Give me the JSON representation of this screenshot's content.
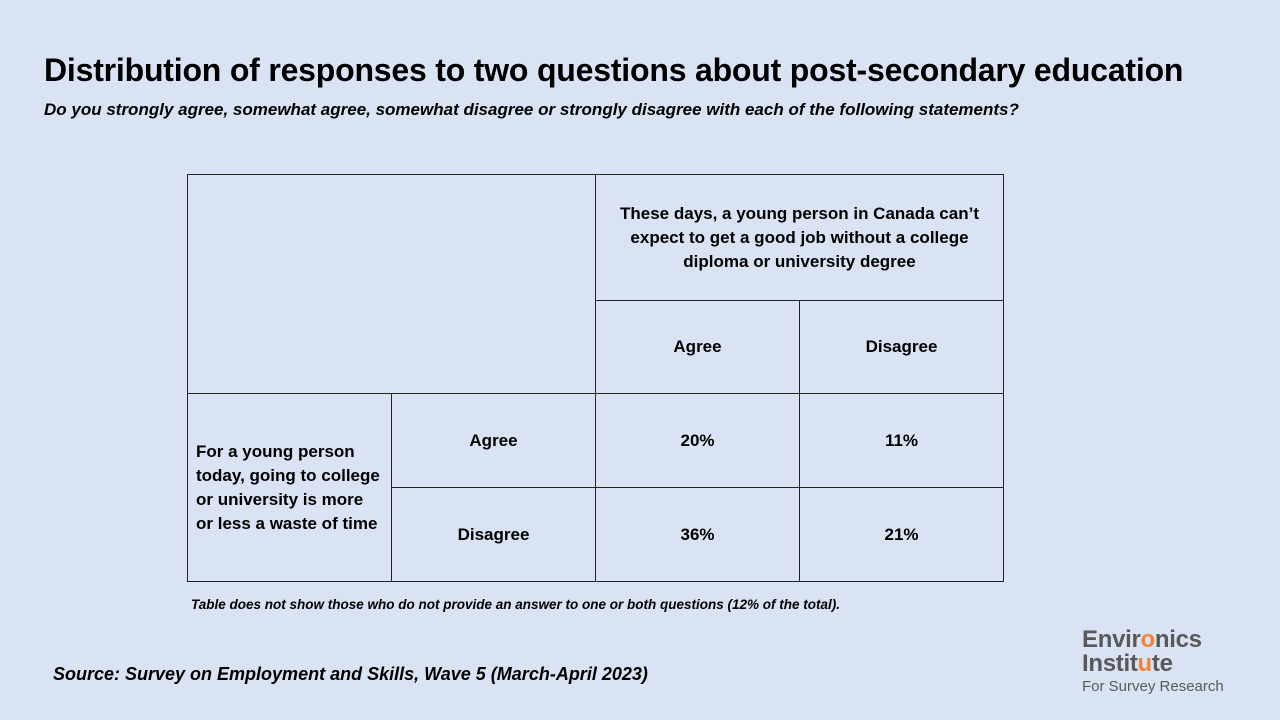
{
  "title": "Distribution of responses to two questions about post-secondary education",
  "subtitle": "Do you strongly agree, somewhat agree, somewhat disagree or strongly disagree with each of the following statements?",
  "chart_data": {
    "type": "table",
    "column_question": "These days, a young person in Canada can’t expect to get a good job without a college diploma or university degree",
    "row_question": "For a young person today, going to college or university is more or less a waste of time",
    "columns": [
      "Agree",
      "Disagree"
    ],
    "rows": [
      {
        "label": "Agree",
        "values": [
          "20%",
          "11%"
        ]
      },
      {
        "label": "Disagree",
        "values": [
          "36%",
          "21%"
        ]
      }
    ]
  },
  "note": "Table does not show those who do not provide an answer to one or both questions (12% of the total).",
  "source": "Source: Survey on Employment and Skills, Wave 5 (March-April 2023)",
  "logo": {
    "line1_a": "Envir",
    "line1_b": "o",
    "line1_c": "nics",
    "line2_a": "Instit",
    "line2_b": "u",
    "line2_c": "te",
    "line3": "For Survey Research",
    "accent_color": "#f0833a"
  }
}
